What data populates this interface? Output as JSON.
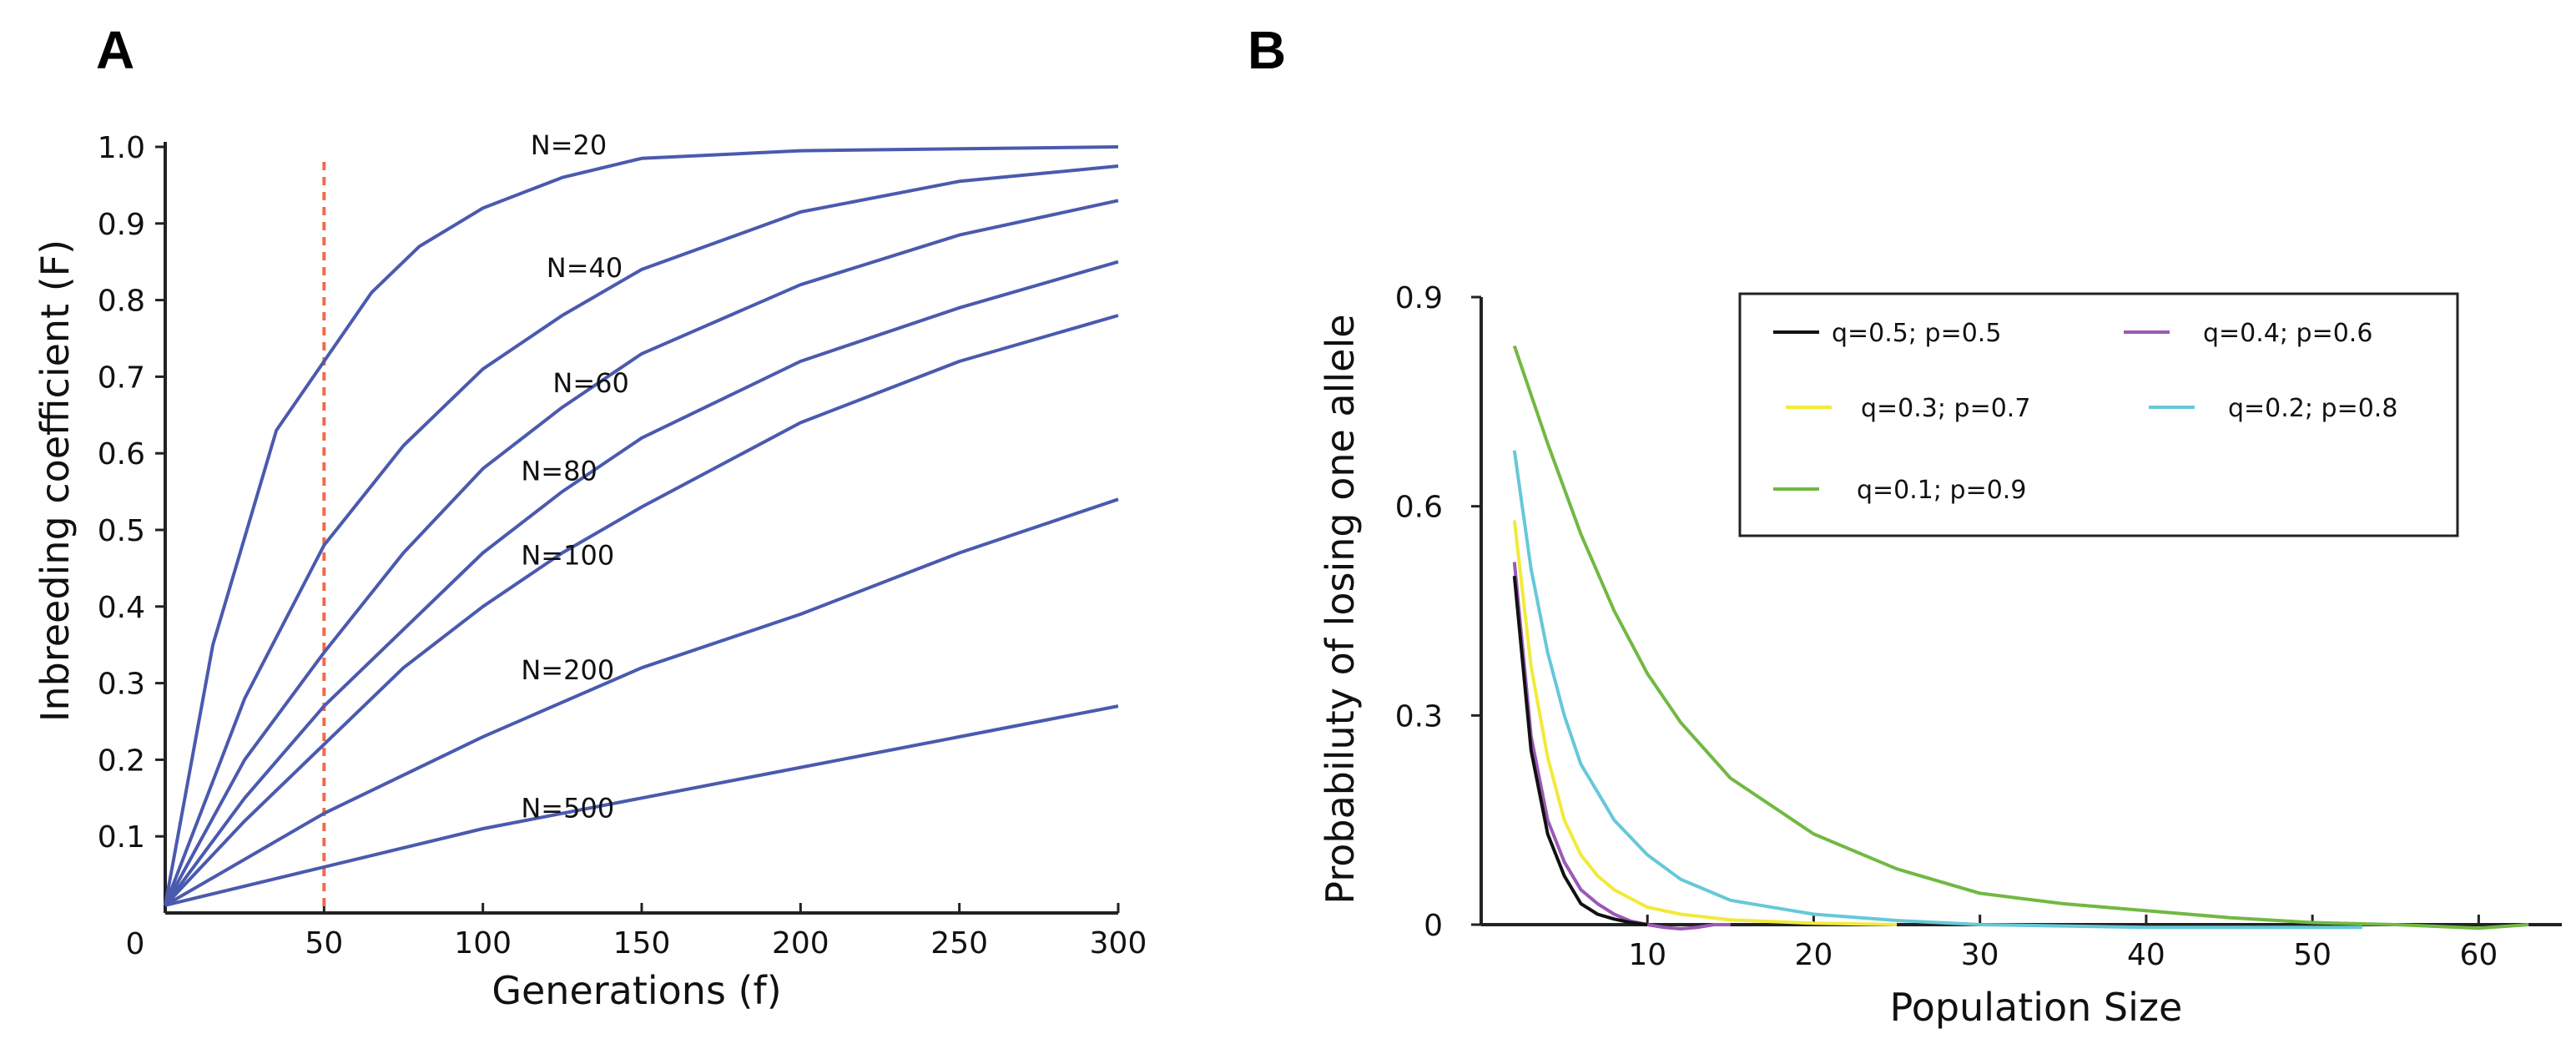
{
  "chart_data": [
    {
      "panel": "A",
      "type": "line",
      "xlabel": "Generations (f)",
      "ylabel": "Inbreeding coefficient (F)",
      "xlim": [
        0,
        300
      ],
      "ylim": [
        0,
        1.0
      ],
      "xticks": [
        0,
        50,
        100,
        150,
        200,
        250,
        300
      ],
      "xtick_labels": [
        "0",
        "50",
        "100",
        "150",
        "200",
        "250",
        "300"
      ],
      "yticks": [
        0.1,
        0.2,
        0.3,
        0.4,
        0.5,
        0.6,
        0.7,
        0.8,
        0.9,
        1.0
      ],
      "ytick_labels": [
        "0.1",
        "0.2",
        "0.3",
        "0.4",
        "0.5",
        "0.6",
        "0.7",
        "0.8",
        "0.9",
        "1.0"
      ],
      "line_color": "#4a5aae",
      "reference_line": {
        "x": 50,
        "color": "#f06a4a",
        "style": "dashed"
      },
      "series": [
        {
          "name": "N=20",
          "label": "N=20",
          "label_at": [
            115,
            0.99
          ],
          "x": [
            0,
            15,
            35,
            50,
            65,
            80,
            100,
            125,
            150,
            200,
            300
          ],
          "values": [
            0.01,
            0.35,
            0.63,
            0.72,
            0.81,
            0.87,
            0.92,
            0.96,
            0.985,
            0.995,
            1.0
          ]
        },
        {
          "name": "N=40",
          "label": "N=40",
          "label_at": [
            120,
            0.83
          ],
          "x": [
            0,
            25,
            50,
            75,
            100,
            125,
            150,
            200,
            250,
            300
          ],
          "values": [
            0.01,
            0.28,
            0.48,
            0.61,
            0.71,
            0.78,
            0.84,
            0.915,
            0.955,
            0.975
          ]
        },
        {
          "name": "N=60",
          "label": "N=60",
          "label_at": [
            122,
            0.68
          ],
          "x": [
            0,
            25,
            50,
            75,
            100,
            125,
            150,
            200,
            250,
            300
          ],
          "values": [
            0.01,
            0.2,
            0.34,
            0.47,
            0.58,
            0.66,
            0.73,
            0.82,
            0.885,
            0.93
          ]
        },
        {
          "name": "N=80",
          "label": "N=80",
          "label_at": [
            112,
            0.565
          ],
          "x": [
            0,
            25,
            50,
            75,
            100,
            125,
            150,
            200,
            250,
            300
          ],
          "values": [
            0.01,
            0.15,
            0.27,
            0.37,
            0.47,
            0.55,
            0.62,
            0.72,
            0.79,
            0.85
          ]
        },
        {
          "name": "N=100",
          "label": "N=100",
          "label_at": [
            112,
            0.455
          ],
          "x": [
            0,
            25,
            50,
            75,
            100,
            125,
            150,
            200,
            250,
            300
          ],
          "values": [
            0.01,
            0.12,
            0.22,
            0.32,
            0.4,
            0.47,
            0.53,
            0.64,
            0.72,
            0.78
          ]
        },
        {
          "name": "N=200",
          "label": "N=200",
          "label_at": [
            112,
            0.305
          ],
          "x": [
            0,
            50,
            100,
            150,
            200,
            250,
            300
          ],
          "values": [
            0.01,
            0.13,
            0.23,
            0.32,
            0.39,
            0.47,
            0.54
          ]
        },
        {
          "name": "N=500",
          "label": "N=500",
          "label_at": [
            112,
            0.125
          ],
          "x": [
            0,
            50,
            100,
            150,
            200,
            250,
            300
          ],
          "values": [
            0.01,
            0.06,
            0.11,
            0.15,
            0.19,
            0.23,
            0.27
          ]
        }
      ]
    },
    {
      "panel": "B",
      "type": "line",
      "xlabel": "Population Size",
      "ylabel": "Probabiluty of losing one allele",
      "xlim": [
        0,
        65
      ],
      "ylim": [
        0,
        0.9
      ],
      "xticks": [
        10,
        20,
        30,
        40,
        50,
        60
      ],
      "xtick_labels": [
        "10",
        "20",
        "30",
        "40",
        "50",
        "60"
      ],
      "yticks": [
        0,
        0.3,
        0.6,
        0.9
      ],
      "ytick_labels": [
        "0",
        "0.3",
        "0.6",
        "0.9"
      ],
      "legend_position": "top-right",
      "series": [
        {
          "name": "q=0.5; p=0.5",
          "color": "#111111",
          "x": [
            2,
            3,
            4,
            5,
            6,
            7,
            8,
            9,
            10
          ],
          "values": [
            0.5,
            0.25,
            0.13,
            0.07,
            0.03,
            0.015,
            0.008,
            0.003,
            0.0
          ]
        },
        {
          "name": "q=0.4; p=0.6",
          "color": "#9b59b6",
          "x": [
            2,
            3,
            4,
            5,
            6,
            7,
            8,
            9,
            10,
            11,
            12,
            13,
            14,
            15
          ],
          "values": [
            0.52,
            0.27,
            0.15,
            0.09,
            0.05,
            0.03,
            0.015,
            0.005,
            0.0,
            -0.004,
            -0.006,
            -0.004,
            0.0,
            0.0
          ]
        },
        {
          "name": "q=0.3; p=0.7",
          "color": "#f2ea3a",
          "x": [
            2,
            3,
            4,
            5,
            6,
            7,
            8,
            10,
            12,
            15,
            20,
            25
          ],
          "values": [
            0.58,
            0.37,
            0.24,
            0.15,
            0.1,
            0.07,
            0.05,
            0.025,
            0.015,
            0.007,
            0.002,
            0.0
          ]
        },
        {
          "name": "q=0.2; p=0.8",
          "color": "#66c8d8",
          "x": [
            2,
            3,
            4,
            5,
            6,
            7,
            8,
            10,
            12,
            15,
            20,
            25,
            30,
            40,
            53
          ],
          "values": [
            0.68,
            0.51,
            0.39,
            0.3,
            0.23,
            0.19,
            0.15,
            0.1,
            0.065,
            0.035,
            0.015,
            0.006,
            0.0,
            -0.004,
            -0.004
          ]
        },
        {
          "name": "q=0.1; p=0.9",
          "color": "#72b844",
          "x": [
            2,
            4,
            6,
            8,
            10,
            12,
            15,
            20,
            25,
            30,
            35,
            40,
            45,
            50,
            55,
            60,
            63
          ],
          "values": [
            0.83,
            0.69,
            0.56,
            0.45,
            0.36,
            0.29,
            0.21,
            0.13,
            0.08,
            0.045,
            0.03,
            0.02,
            0.01,
            0.003,
            0.0,
            -0.005,
            0.0
          ]
        }
      ]
    }
  ],
  "panel_a": {
    "letter": "A",
    "origin_label": "0"
  },
  "panel_b": {
    "letter": "B"
  }
}
